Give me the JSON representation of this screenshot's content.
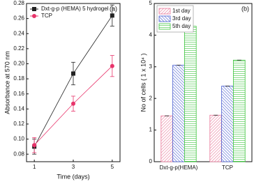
{
  "chart_data": [
    {
      "type": "line",
      "annotation": "(a)",
      "x_label": "Time (days)",
      "y_label": "Absorbance at 570 nm",
      "x": [
        1,
        3,
        5
      ],
      "series": [
        {
          "name": "Dxt-g-p (HEMA) 5 hydrogel",
          "color": "#222222",
          "marker": "square",
          "values": [
            0.09,
            0.187,
            0.264
          ],
          "errors": [
            0.01,
            0.015,
            0.014
          ]
        },
        {
          "name": "TCP",
          "color": "#e8336a",
          "marker": "circle",
          "values": [
            0.092,
            0.147,
            0.197
          ],
          "errors": [
            0.01,
            0.01,
            0.014
          ]
        }
      ],
      "xlim": [
        0.6,
        5.4
      ],
      "xticks": [
        1,
        3,
        5
      ],
      "ylim": [
        0.07,
        0.28
      ],
      "yticks": [
        0.08,
        {
          "value": 0.1,
          "label": "0.10"
        },
        0.12,
        0.14,
        0.16,
        0.18,
        {
          "value": 0.2,
          "label": "0.20"
        },
        0.22,
        0.24,
        0.26,
        0.28
      ],
      "legend": "top-left"
    },
    {
      "type": "bar",
      "annotation": "(b)",
      "y_label": "No of cells ( 1 x 10⁴ )",
      "categories": [
        "Dxt-g-p(HEMA)",
        "TCP"
      ],
      "series": [
        {
          "name": "1st day",
          "color": "#e8799a",
          "values": [
            1.45,
            1.47
          ]
        },
        {
          "name": "3rd day",
          "color": "#4a5fd0",
          "values": [
            3.05,
            2.39
          ]
        },
        {
          "name": "5th day",
          "color": "#3cc43c",
          "values": [
            4.28,
            3.21
          ]
        }
      ],
      "ylim": [
        0,
        5
      ],
      "yticks": [
        0,
        1,
        2,
        3,
        4,
        5
      ],
      "legend": "top-left"
    }
  ]
}
